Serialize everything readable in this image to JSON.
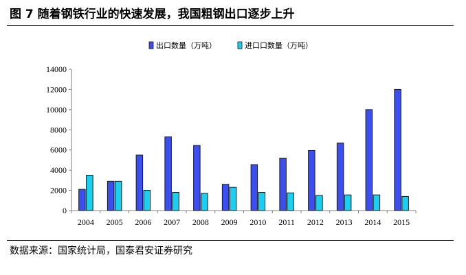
{
  "figure": {
    "title": "图 7 随着钢铁行业的快速发展，我国粗钢出口逐步上升",
    "source": "数据来源：国家统计局，国泰君安证券研究"
  },
  "colors": {
    "export": "#3b4ff0",
    "import": "#1ad0f2"
  },
  "chart_data": {
    "type": "bar",
    "categories": [
      "2004",
      "2005",
      "2006",
      "2007",
      "2008",
      "2009",
      "2010",
      "2011",
      "2012",
      "2013",
      "2014",
      "2015"
    ],
    "series": [
      {
        "name": "出口数量（万吨）",
        "values": [
          2100,
          2900,
          5500,
          7300,
          6450,
          2600,
          4550,
          5200,
          5950,
          6700,
          10000,
          12000
        ]
      },
      {
        "name": "进口口数量（万吨）",
        "values": [
          3500,
          2900,
          2000,
          1800,
          1700,
          2300,
          1800,
          1750,
          1500,
          1550,
          1550,
          1400
        ]
      }
    ],
    "yticks": [
      "0",
      "2000",
      "4000",
      "6000",
      "8000",
      "10000",
      "12000",
      "14000"
    ],
    "ylim": [
      0,
      14000
    ],
    "legend_position": "top-center",
    "grid": false,
    "xlabel": "",
    "ylabel": ""
  }
}
